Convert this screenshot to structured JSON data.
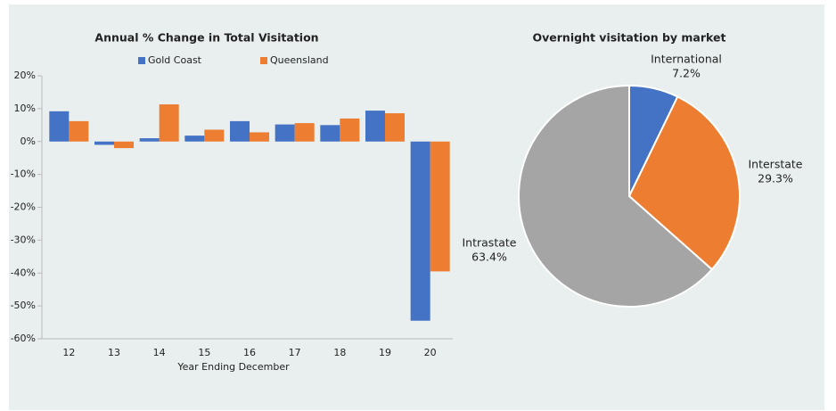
{
  "chart_data": [
    {
      "type": "bar",
      "title": "Annual % Change in Total Visitation",
      "x_label": "Year Ending December",
      "categories": [
        "12",
        "13",
        "14",
        "15",
        "16",
        "17",
        "18",
        "19",
        "20"
      ],
      "series": [
        {
          "name": "Gold Coast",
          "color": "#4472c4",
          "values": [
            9.2,
            -1,
            1,
            1.8,
            6.2,
            5.2,
            5,
            9.4,
            -54.5
          ]
        },
        {
          "name": "Queensland",
          "color": "#ed7d31",
          "values": [
            6.2,
            -2,
            11.3,
            3.6,
            2.8,
            5.6,
            7,
            8.6,
            -39.5
          ]
        }
      ],
      "ylim": [
        -60,
        20
      ],
      "yticks": [
        {
          "value": 20,
          "label": "20%"
        },
        {
          "value": 10,
          "label": "10%"
        },
        {
          "value": 0,
          "label": "0%"
        },
        {
          "value": -10,
          "label": "-10%"
        },
        {
          "value": -20,
          "label": "-20%"
        },
        {
          "value": -30,
          "label": "-30%"
        },
        {
          "value": -40,
          "label": "-40%"
        },
        {
          "value": -50,
          "label": "-50%"
        },
        {
          "value": -60,
          "label": "-60%"
        }
      ],
      "legend": "top"
    },
    {
      "type": "pie",
      "title": "Overnight visitation by market",
      "categories": [
        "International",
        "Interstate",
        "Intrastate"
      ],
      "values": [
        7.2,
        29.3,
        63.4
      ],
      "value_labels": [
        "7.2%",
        "29.3%",
        "63.4%"
      ],
      "colors": [
        "#4472c4",
        "#ed7d31",
        "#a5a5a5"
      ]
    }
  ]
}
